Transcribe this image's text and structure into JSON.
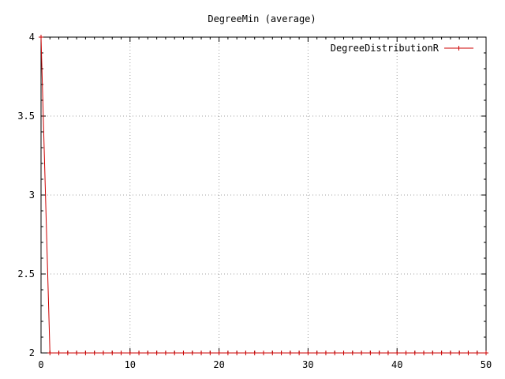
{
  "chart_data": {
    "type": "line",
    "title": "DegreeMin (average)",
    "xlabel": "",
    "ylabel": "",
    "xlim": [
      0,
      50
    ],
    "ylim": [
      2,
      4
    ],
    "xticks": [
      0,
      10,
      20,
      30,
      40,
      50
    ],
    "yticks": [
      2,
      2.5,
      3,
      3.5,
      4
    ],
    "xtick_labels": [
      "0",
      "10",
      "20",
      "30",
      "40",
      "50"
    ],
    "ytick_labels": [
      "2",
      "2.5",
      "3",
      "3.5",
      "4"
    ],
    "grid": true,
    "legend_position": "top-right",
    "series": [
      {
        "name": "DegreeDistributionR",
        "color": "#cc0000",
        "marker": "plus",
        "x": [
          0,
          1,
          2,
          3,
          4,
          5,
          6,
          7,
          8,
          9,
          10,
          11,
          12,
          13,
          14,
          15,
          16,
          17,
          18,
          19,
          20,
          21,
          22,
          23,
          24,
          25,
          26,
          27,
          28,
          29,
          30,
          31,
          32,
          33,
          34,
          35,
          36,
          37,
          38,
          39,
          40,
          41,
          42,
          43,
          44,
          45,
          46,
          47,
          48,
          49,
          50
        ],
        "y": [
          4,
          2,
          2,
          2,
          2,
          2,
          2,
          2,
          2,
          2,
          2,
          2,
          2,
          2,
          2,
          2,
          2,
          2,
          2,
          2,
          2,
          2,
          2,
          2,
          2,
          2,
          2,
          2,
          2,
          2,
          2,
          2,
          2,
          2,
          2,
          2,
          2,
          2,
          2,
          2,
          2,
          2,
          2,
          2,
          2,
          2,
          2,
          2,
          2,
          2,
          2
        ]
      }
    ]
  }
}
